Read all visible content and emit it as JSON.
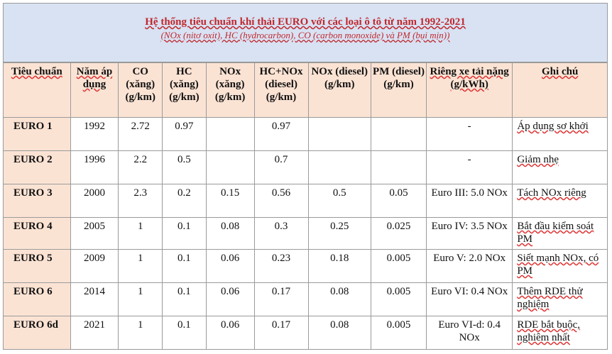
{
  "title": "Hệ thống tiêu chuẩn khí thải EURO với các loại ô tô từ năm 1992-2021",
  "subtitle": "(NOx (nitơ oxit), HC (hydrocarbon), CO (carbon monoxide) và PM (bụi mịn))",
  "headers": [
    "Tiêu chuẩn",
    "Năm áp dụng",
    "CO (xăng) (g/km)",
    "HC (xăng) (g/km)",
    "NOx (xăng) (g/km)",
    "HC+NOx (diesel) (g/km)",
    "NOx (diesel) (g/km)",
    "PM (diesel) (g/km)",
    "Riêng xe tải nặng (g/kWh)",
    "Ghi chú"
  ],
  "rows": [
    {
      "std": "EURO 1",
      "year": "1992",
      "co": "2.72",
      "hc": "0.97",
      "nox_p": "",
      "hcnox": "0.97",
      "nox_d": "",
      "pm": "",
      "truck": "-",
      "note": "Áp dụng sơ khởi"
    },
    {
      "std": "EURO 2",
      "year": "1996",
      "co": "2.2",
      "hc": "0.5",
      "nox_p": "",
      "hcnox": "0.7",
      "nox_d": "",
      "pm": "",
      "truck": "-",
      "note": "Giảm nhẹ"
    },
    {
      "std": "EURO 3",
      "year": "2000",
      "co": "2.3",
      "hc": "0.2",
      "nox_p": "0.15",
      "hcnox": "0.56",
      "nox_d": "0.5",
      "pm": "0.05",
      "truck": "Euro III: 5.0 NOx",
      "note": "Tách NOx riêng"
    },
    {
      "std": "EURO 4",
      "year": "2005",
      "co": "1",
      "hc": "0.1",
      "nox_p": "0.08",
      "hcnox": "0.3",
      "nox_d": "0.25",
      "pm": "0.025",
      "truck": "Euro IV: 3.5 NOx",
      "note": "Bắt đầu kiểm soát PM"
    },
    {
      "std": "EURO 5",
      "year": "2009",
      "co": "1",
      "hc": "0.1",
      "nox_p": "0.06",
      "hcnox": "0.23",
      "nox_d": "0.18",
      "pm": "0.005",
      "truck": "Euro V: 2.0 NOx",
      "note": "Siết mạnh NOx, có PM"
    },
    {
      "std": "EURO 6",
      "year": "2014",
      "co": "1",
      "hc": "0.1",
      "nox_p": "0.06",
      "hcnox": "0.17",
      "nox_d": "0.08",
      "pm": "0.005",
      "truck": "Euro VI: 0.4 NOx",
      "note": "Thêm RDE thử nghiệm"
    },
    {
      "std": "EURO 6d",
      "year": "2021",
      "co": "1",
      "hc": "0.1",
      "nox_p": "0.06",
      "hcnox": "0.17",
      "nox_d": "0.08",
      "pm": "0.005",
      "truck": "Euro VI-d: 0.4 NOx",
      "note": "RDE bắt buộc, nghiêm nhất"
    }
  ]
}
